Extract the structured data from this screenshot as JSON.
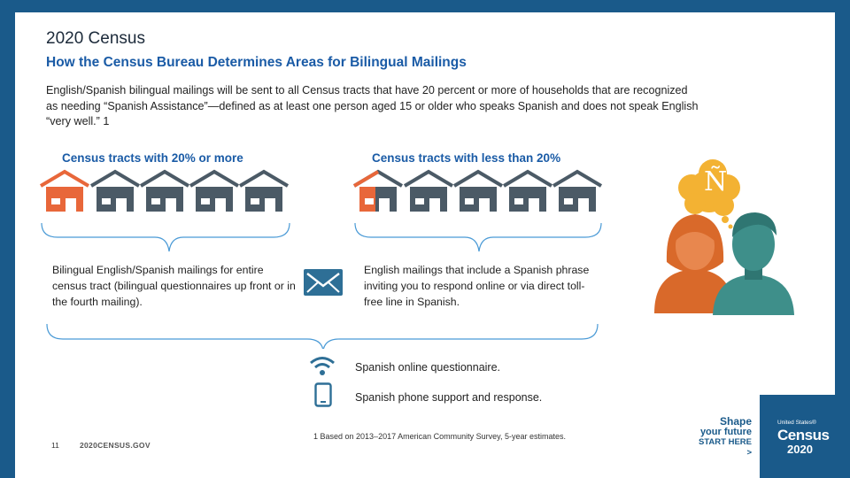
{
  "slide": {
    "title": "2020 Census",
    "subtitle": "How the Census Bureau Determines Areas for Bilingual Mailings",
    "intro": "English/Spanish bilingual mailings will be sent to all Census tracts that have 20 percent or more of households that are recognized as needing “Spanish Assistance”—defined as at least one person aged 15 or older who speaks Spanish and does not speak English “very well.” 1"
  },
  "left_column": {
    "heading": "Census tracts with 20% or more",
    "description": "Bilingual English/Spanish mailings for entire census tract (bilingual questionnaires up front or in the fourth mailing)."
  },
  "right_column": {
    "heading": "Census tracts with less than 20%",
    "description": "English mailings that include a Spanish phrase inviting you to respond online or via direct toll-free line in Spanish."
  },
  "features": [
    {
      "icon": "wifi-icon",
      "label": "Spanish online questionnaire."
    },
    {
      "icon": "phone-icon",
      "label": "Spanish phone support and response."
    }
  ],
  "speech_glyph": "Ñ",
  "footer": {
    "page_number": "11",
    "website": "2020CENSUS.GOV",
    "footnote": "1 Based on 2013–2017 American Community Survey, 5-year estimates."
  },
  "branding": {
    "tagline_line1": "Shape",
    "tagline_line2": "your future",
    "tagline_line3": "START HERE >",
    "logo_small": "United States®",
    "logo_word": "Census",
    "logo_year": "2020"
  },
  "colors": {
    "border_blue": "#1a5a8a",
    "heading_blue": "#1a5ba6",
    "house_orange": "#e8673a",
    "house_gray": "#4b5a66",
    "envelope_blue": "#2e6f96",
    "teal": "#3e8f8a",
    "speech_yellow": "#f3b233"
  }
}
